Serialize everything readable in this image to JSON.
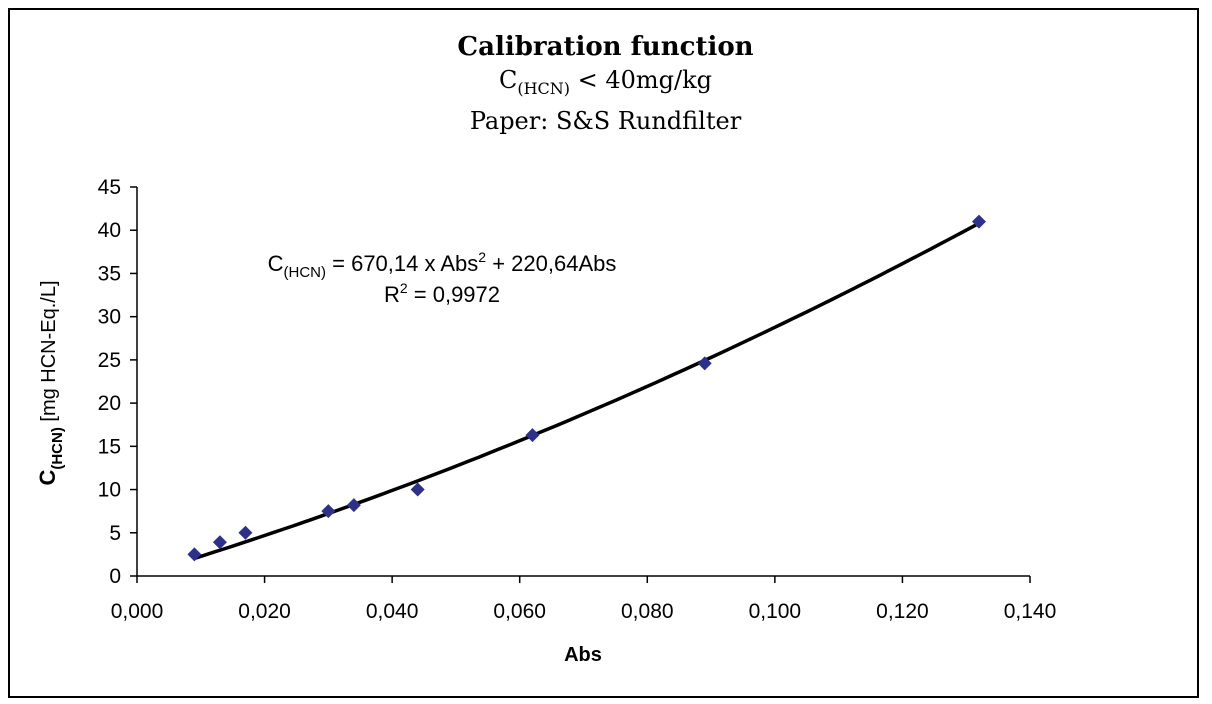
{
  "title": "Calibration function",
  "subtitle1": {
    "prefix": "C",
    "sub": "(HCN)",
    "suffix": " < 40mg/kg"
  },
  "subtitle2": "Paper: S&S Rundfilter",
  "chart_data": {
    "type": "scatter",
    "xlabel": "Abs",
    "ylabel": {
      "main": "C",
      "sub": "(HCN)",
      "unit": " [mg HCN-Eq./L]"
    },
    "xlim": [
      0,
      0.14
    ],
    "ylim": [
      0,
      45
    ],
    "x_ticks": [
      "0,000",
      "0,020",
      "0,040",
      "0,060",
      "0,080",
      "0,100",
      "0,120",
      "0,140"
    ],
    "x_tick_values": [
      0,
      0.02,
      0.04,
      0.06,
      0.08,
      0.1,
      0.12,
      0.14
    ],
    "y_ticks": [
      "0",
      "5",
      "10",
      "15",
      "20",
      "25",
      "30",
      "35",
      "40",
      "45"
    ],
    "y_tick_values": [
      0,
      5,
      10,
      15,
      20,
      25,
      30,
      35,
      40,
      45
    ],
    "grid": false,
    "legend": "none",
    "points": [
      {
        "x": 0.009,
        "y": 2.5
      },
      {
        "x": 0.013,
        "y": 3.9
      },
      {
        "x": 0.017,
        "y": 5.0
      },
      {
        "x": 0.03,
        "y": 7.5
      },
      {
        "x": 0.034,
        "y": 8.2
      },
      {
        "x": 0.044,
        "y": 10.0
      },
      {
        "x": 0.062,
        "y": 16.3
      },
      {
        "x": 0.089,
        "y": 24.6
      },
      {
        "x": 0.132,
        "y": 41.0
      }
    ],
    "trendline": {
      "type": "polynomial",
      "a2": 670.14,
      "a1": 220.64,
      "x_range": [
        0.009,
        0.132
      ]
    },
    "equation": {
      "lhs_main": "C",
      "lhs_sub": "(HCN)",
      "rhs_a": " = 670,14 x Abs",
      "rhs_sup": "2",
      "rhs_b": " + 220,64Abs"
    },
    "r_squared": {
      "prefix": "R",
      "sup": "2",
      "value": " = 0,9972"
    },
    "marker_color": "#2e3189",
    "line_color": "#000000"
  }
}
